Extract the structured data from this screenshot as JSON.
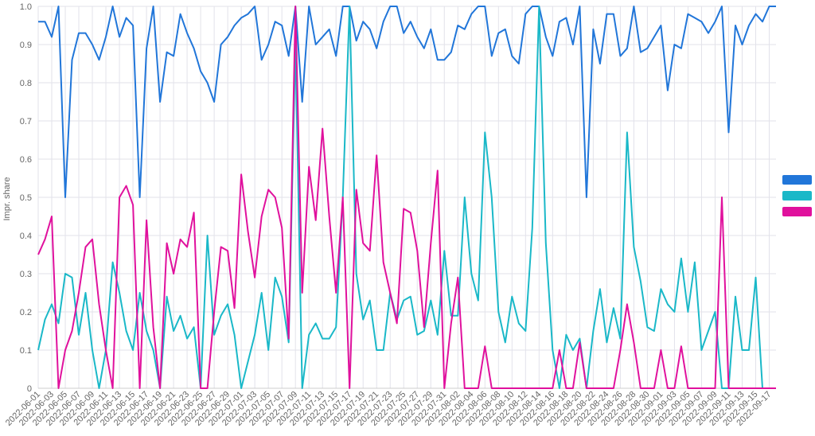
{
  "chart_data": {
    "type": "line",
    "ylabel": "Impr. share",
    "categories": [
      "2022-06-01",
      null,
      "2022-06-03",
      null,
      "2022-06-05",
      null,
      "2022-06-07",
      null,
      "2022-06-09",
      null,
      "2022-06-11",
      null,
      "2022-06-13",
      null,
      "2022-06-15",
      null,
      "2022-06-17",
      null,
      "2022-06-19",
      null,
      "2022-06-21",
      null,
      "2022-06-23",
      null,
      "2022-06-25",
      null,
      "2022-06-27",
      null,
      "2022-06-29",
      null,
      "2022-07-01",
      null,
      "2022-07-03",
      null,
      "2022-07-05",
      null,
      "2022-07-07",
      null,
      "2022-07-09",
      null,
      "2022-07-11",
      null,
      "2022-07-13",
      null,
      "2022-07-15",
      null,
      "2022-07-17",
      null,
      "2022-07-19",
      null,
      "2022-07-21",
      null,
      "2022-07-23",
      null,
      "2022-07-25",
      null,
      "2022-07-27",
      null,
      "2022-07-29",
      null,
      "2022-07-31",
      null,
      "2022-08-02",
      null,
      "2022-08-04",
      null,
      "2022-08-06",
      null,
      "2022-08-08",
      null,
      "2022-08-10",
      null,
      "2022-08-12",
      null,
      "2022-08-14",
      null,
      "2022-08-16",
      null,
      "2022-08-18",
      null,
      "2022-08-20",
      null,
      "2022-08-22",
      null,
      "2022-08-24",
      null,
      "2022-08-26",
      null,
      "2022-08-28",
      null,
      "2022-08-30",
      null,
      "2022-09-01",
      null,
      "2022-09-03",
      null,
      "2022-09-05",
      null,
      "2022-09-07",
      null,
      "2022-09-09",
      null,
      "2022-09-11",
      null,
      "2022-09-13",
      null,
      "2022-09-15",
      null,
      "2022-09-17",
      null
    ],
    "series": [
      {
        "color": "#2176d9",
        "values": [
          0.96,
          0.96,
          0.92,
          1.0,
          0.5,
          0.86,
          0.93,
          0.93,
          0.9,
          0.86,
          0.92,
          1.0,
          0.92,
          0.97,
          0.95,
          0.5,
          0.89,
          1.0,
          0.75,
          0.88,
          0.87,
          0.98,
          0.93,
          0.89,
          0.83,
          0.8,
          0.75,
          0.9,
          0.92,
          0.95,
          0.97,
          0.98,
          1.0,
          0.86,
          0.9,
          0.96,
          0.95,
          0.87,
          1.0,
          0.75,
          1.0,
          0.9,
          0.92,
          0.94,
          0.87,
          1.0,
          1.0,
          0.91,
          0.96,
          0.94,
          0.89,
          0.96,
          1.0,
          1.0,
          0.93,
          0.96,
          0.92,
          0.89,
          0.94,
          0.86,
          0.86,
          0.88,
          0.95,
          0.94,
          0.98,
          1.0,
          1.0,
          0.87,
          0.93,
          0.94,
          0.87,
          0.85,
          0.98,
          1.0,
          1.0,
          0.92,
          0.87,
          0.96,
          0.97,
          0.9,
          1.0,
          0.5,
          0.94,
          0.85,
          0.98,
          0.98,
          0.87,
          0.89,
          1.0,
          0.88,
          0.89,
          0.92,
          0.95,
          0.78,
          0.9,
          0.89,
          0.98,
          0.97,
          0.96,
          0.93,
          0.96,
          1.0,
          0.67,
          0.95,
          0.9,
          0.95,
          0.98,
          0.96,
          1.0,
          1.0
        ]
      },
      {
        "color": "#1ab8c8",
        "values": [
          0.1,
          0.18,
          0.22,
          0.17,
          0.3,
          0.29,
          0.14,
          0.25,
          0.1,
          0,
          0.1,
          0.33,
          0.25,
          0.15,
          0.1,
          0.25,
          0.15,
          0.1,
          0,
          0.24,
          0.15,
          0.19,
          0.13,
          0.16,
          0,
          0.4,
          0.14,
          0.19,
          0.22,
          0.14,
          0,
          0.07,
          0.14,
          0.25,
          0.1,
          0.29,
          0.24,
          0.12,
          0.9,
          0,
          0.14,
          0.17,
          0.13,
          0.13,
          0.16,
          0.5,
          1.0,
          0.3,
          0.18,
          0.23,
          0.1,
          0.1,
          0.25,
          0.18,
          0.23,
          0.24,
          0.14,
          0.15,
          0.23,
          0.14,
          0.36,
          0.19,
          0.19,
          0.5,
          0.3,
          0.23,
          0.67,
          0.5,
          0.2,
          0.12,
          0.24,
          0.17,
          0.15,
          0.42,
          1.0,
          0.38,
          0.1,
          0,
          0.14,
          0.1,
          0.13,
          0,
          0.15,
          0.26,
          0.12,
          0.21,
          0.13,
          0.67,
          0.37,
          0.28,
          0.16,
          0.15,
          0.26,
          0.22,
          0.2,
          0.34,
          0.2,
          0.33,
          0.1,
          0.15,
          0.2,
          0,
          0,
          0.24,
          0.1,
          0.1,
          0.29,
          0,
          0,
          0
        ]
      },
      {
        "color": "#e0119d",
        "values": [
          0.35,
          0.39,
          0.45,
          0,
          0.1,
          0.15,
          0.25,
          0.37,
          0.39,
          0.22,
          0.1,
          0,
          0.5,
          0.53,
          0.48,
          0,
          0.44,
          0.16,
          0,
          0.38,
          0.3,
          0.39,
          0.37,
          0.46,
          0,
          0,
          0.2,
          0.37,
          0.36,
          0.21,
          0.56,
          0.41,
          0.29,
          0.45,
          0.52,
          0.5,
          0.42,
          0.13,
          1.0,
          0.25,
          0.58,
          0.44,
          0.68,
          0.45,
          0.25,
          0.5,
          0,
          0.52,
          0.38,
          0.36,
          0.61,
          0.33,
          0.25,
          0.17,
          0.47,
          0.46,
          0.36,
          0.16,
          0.38,
          0.57,
          0,
          0.17,
          0.29,
          0,
          0,
          0,
          0.11,
          0,
          0,
          0,
          0,
          0,
          0,
          0,
          0,
          0,
          0,
          0.1,
          0,
          0,
          0.12,
          0,
          0,
          0,
          0,
          0,
          0.1,
          0.22,
          0.12,
          0,
          0,
          0,
          0.1,
          0,
          0,
          0.11,
          0,
          0,
          0,
          0,
          0,
          0.5,
          0,
          0,
          0,
          0,
          0,
          0,
          0,
          0
        ]
      }
    ],
    "ylim": [
      0,
      1
    ],
    "yticks": [
      0,
      0.1,
      0.2,
      0.3,
      0.4,
      0.5,
      0.6,
      0.7,
      0.8,
      0.9,
      {
        "value": 1,
        "label": "1.0"
      }
    ],
    "grid": true
  }
}
